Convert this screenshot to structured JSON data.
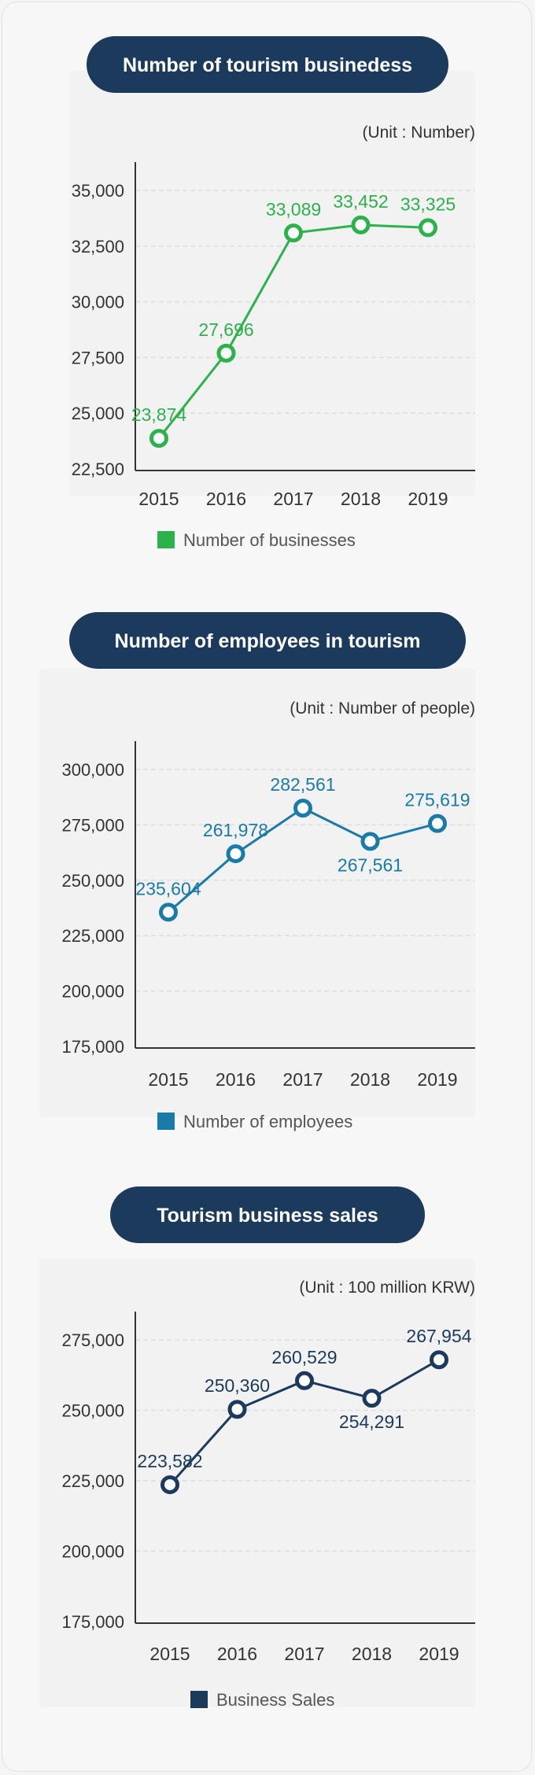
{
  "colors": {
    "navy": "#1b3a5c",
    "green": "#2bb24c",
    "blue": "#1a7ba8",
    "grid": "#dddddd",
    "axis": "#333333",
    "text": "#333333"
  },
  "chart_data": [
    {
      "type": "line",
      "title": "Number of tourism businedess",
      "unit": "(Unit : Number)",
      "categories": [
        "2015",
        "2016",
        "2017",
        "2018",
        "2019"
      ],
      "yticks": [
        "35,000",
        "32,500",
        "30,000",
        "27,500",
        "25,000",
        "22,500"
      ],
      "ylim": [
        22500,
        35000
      ],
      "series": [
        {
          "name": "Number of businesses",
          "values": [
            23874,
            27696,
            33089,
            33452,
            33325
          ],
          "labels": [
            "23,874",
            "27,696",
            "33,089",
            "33,452",
            "33,325"
          ]
        }
      ],
      "legend": "bottom",
      "grid": true,
      "color": "#2bb24c",
      "marker": "circle"
    },
    {
      "type": "line",
      "title": "Number of employees in tourism",
      "unit": "(Unit : Number of people)",
      "categories": [
        "2015",
        "2016",
        "2017",
        "2018",
        "2019"
      ],
      "yticks": [
        "300,000",
        "275,000",
        "250,000",
        "225,000",
        "200,000",
        "175,000"
      ],
      "ylim": [
        175000,
        300000
      ],
      "series": [
        {
          "name": "Number of employees",
          "values": [
            235604,
            261978,
            282561,
            267561,
            275619
          ],
          "labels": [
            "235,604",
            "261,978",
            "282,561",
            "267,561",
            "275,619"
          ]
        }
      ],
      "legend": "bottom",
      "grid": true,
      "color": "#1a7ba8",
      "marker": "circle"
    },
    {
      "type": "line",
      "title": "Tourism business sales",
      "unit": "(Unit : 100 million KRW)",
      "categories": [
        "2015",
        "2016",
        "2017",
        "2018",
        "2019"
      ],
      "yticks": [
        "275,000",
        "250,000",
        "225,000",
        "200,000",
        "175,000"
      ],
      "ylim": [
        175000,
        275000
      ],
      "series": [
        {
          "name": "Business Sales",
          "values": [
            223582,
            250360,
            260529,
            254291,
            267954
          ],
          "labels": [
            "223,582",
            "250,360",
            "260,529",
            "254,291",
            "267,954"
          ]
        }
      ],
      "legend": "bottom",
      "grid": true,
      "color": "#1b3a5c",
      "marker": "circle"
    }
  ]
}
